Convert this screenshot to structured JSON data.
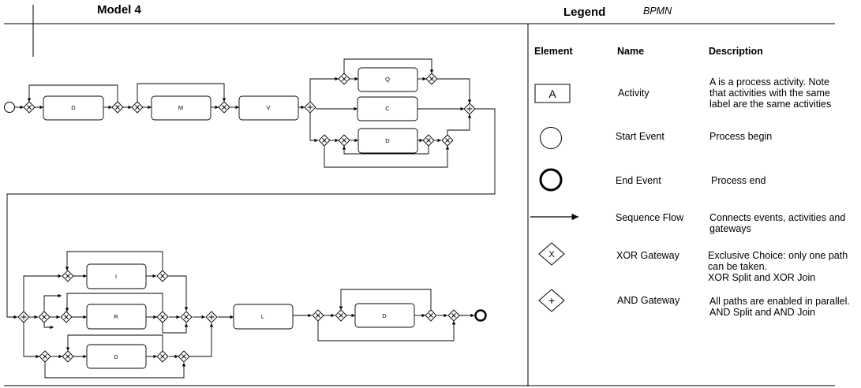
{
  "header": {
    "model_title": "Model 4",
    "legend_title": "Legend",
    "notation": "BPMN"
  },
  "legend": {
    "columns": {
      "element": "Element",
      "name": "Name",
      "description": "Description"
    },
    "rows": [
      {
        "symbol_label": "A",
        "name": "Activity",
        "description": [
          "A is a process activity. Note",
          "that activities with the same",
          "label are the same activities"
        ]
      },
      {
        "name": "Start Event",
        "description": [
          "Process begin"
        ]
      },
      {
        "name": "End Event",
        "description": [
          "Process end"
        ]
      },
      {
        "name": "Sequence Flow",
        "description": [
          "Connects events, activities and",
          "gateways"
        ]
      },
      {
        "symbol_label": "X",
        "name": "XOR Gateway",
        "description": [
          "Exclusive Choice: only one path",
          "can be taken.",
          "XOR Split and XOR Join"
        ]
      },
      {
        "symbol_label": "+",
        "name": "AND Gateway",
        "description": [
          "All paths are enabled in parallel.",
          "AND Split and AND Join"
        ]
      }
    ]
  },
  "activities": {
    "d1": "D",
    "m": "M",
    "v": "V",
    "q": "Q",
    "c": "C",
    "d2": "D",
    "i": "I",
    "r": "R",
    "d3": "D",
    "l": "L",
    "d4": "D"
  }
}
